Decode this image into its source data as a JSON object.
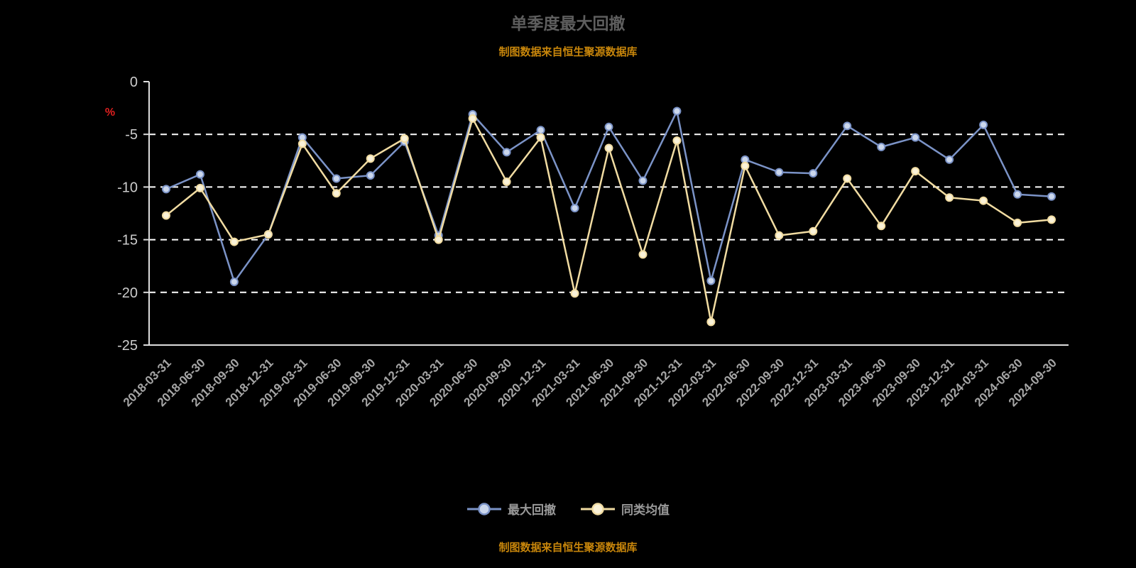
{
  "title": "单季度最大回撤",
  "subtitle": "制图数据来自恒生聚源数据库",
  "footer": "制图数据来自恒生聚源数据库",
  "colors": {
    "background": "#000000",
    "title": "#5E5E5E",
    "orange_note": "#C8860B",
    "grid": "#FFFFFF",
    "axis": "#DDDDDD",
    "y_tick_label": "#CCCCCC",
    "x_tick_label": "#A6A6A6",
    "legend_text": "#999999",
    "y_unit_label": "#E01F1F"
  },
  "chart_data": {
    "type": "line",
    "title": "单季度最大回撤",
    "ylabel": "%",
    "ylim": [
      -25,
      0
    ],
    "yticks": [
      0,
      -5,
      -10,
      -15,
      -20,
      -25
    ],
    "grid": true,
    "legend_position": "bottom",
    "categories": [
      "2018-03-31",
      "2018-06-30",
      "2018-09-30",
      "2018-12-31",
      "2019-03-31",
      "2019-06-30",
      "2019-09-30",
      "2019-12-31",
      "2020-03-31",
      "2020-06-30",
      "2020-09-30",
      "2020-12-31",
      "2021-03-31",
      "2021-06-30",
      "2021-09-30",
      "2021-12-31",
      "2022-03-31",
      "2022-06-30",
      "2022-09-30",
      "2022-12-31",
      "2023-03-31",
      "2023-06-30",
      "2023-09-30",
      "2023-12-31",
      "2024-03-31",
      "2024-06-30",
      "2024-09-30"
    ],
    "series": [
      {
        "name": "最大回撤",
        "color": "#7B93C7",
        "marker_fill": "#CBD7EC",
        "values": [
          -10.2,
          -8.8,
          -19.0,
          -14.5,
          -5.3,
          -9.2,
          -8.9,
          -5.7,
          -14.6,
          -3.1,
          -6.7,
          -4.6,
          -12.0,
          -4.3,
          -9.4,
          -2.8,
          -18.9,
          -7.4,
          -8.6,
          -8.7,
          -4.2,
          -6.2,
          -5.3,
          -7.4,
          -4.1,
          -10.7,
          -10.9
        ]
      },
      {
        "name": "同类均值",
        "color": "#F1DCA2",
        "marker_fill": "#FAF2D8",
        "values": [
          -12.7,
          -10.1,
          -15.2,
          -14.5,
          -5.9,
          -10.6,
          -7.3,
          -5.4,
          -15.0,
          -3.5,
          -9.5,
          -5.3,
          -20.1,
          -6.3,
          -16.4,
          -5.6,
          -22.8,
          -8.0,
          -14.6,
          -14.2,
          -9.2,
          -13.7,
          -8.5,
          -11.0,
          -11.3,
          -13.4,
          -13.1
        ]
      }
    ]
  }
}
